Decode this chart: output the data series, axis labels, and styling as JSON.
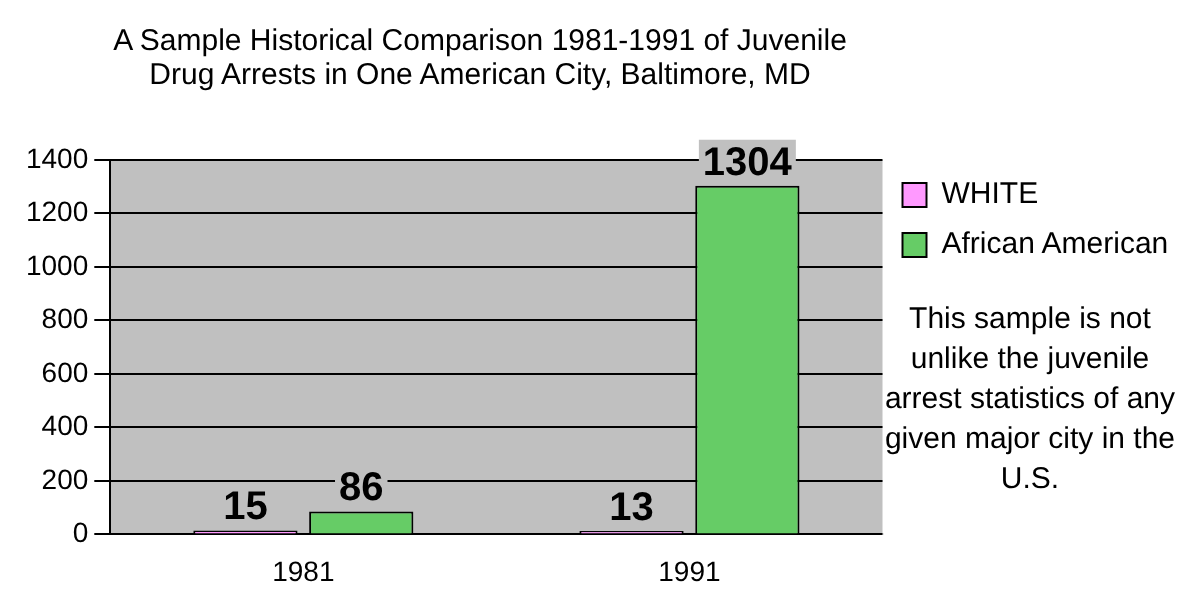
{
  "chart_data": {
    "type": "bar",
    "title": "A Sample Historical Comparison 1981-1991 of Juvenile Drug Arrests in One American City, Baltimore, MD",
    "categories": [
      "1981",
      "1991"
    ],
    "series": [
      {
        "name": "WHITE",
        "color": "#ff99ff",
        "values": [
          15,
          13
        ]
      },
      {
        "name": "African American",
        "color": "#66cc66",
        "values": [
          86,
          1304
        ]
      }
    ],
    "ylim": [
      0,
      1400
    ],
    "yticks": [
      0,
      200,
      400,
      600,
      800,
      1000,
      1200,
      1400
    ],
    "grid": "y",
    "legend": "right",
    "data_labels": true,
    "annotations": [
      "This sample is not unlike the juvenile arrest statistics of any given major city in the U.S."
    ]
  }
}
